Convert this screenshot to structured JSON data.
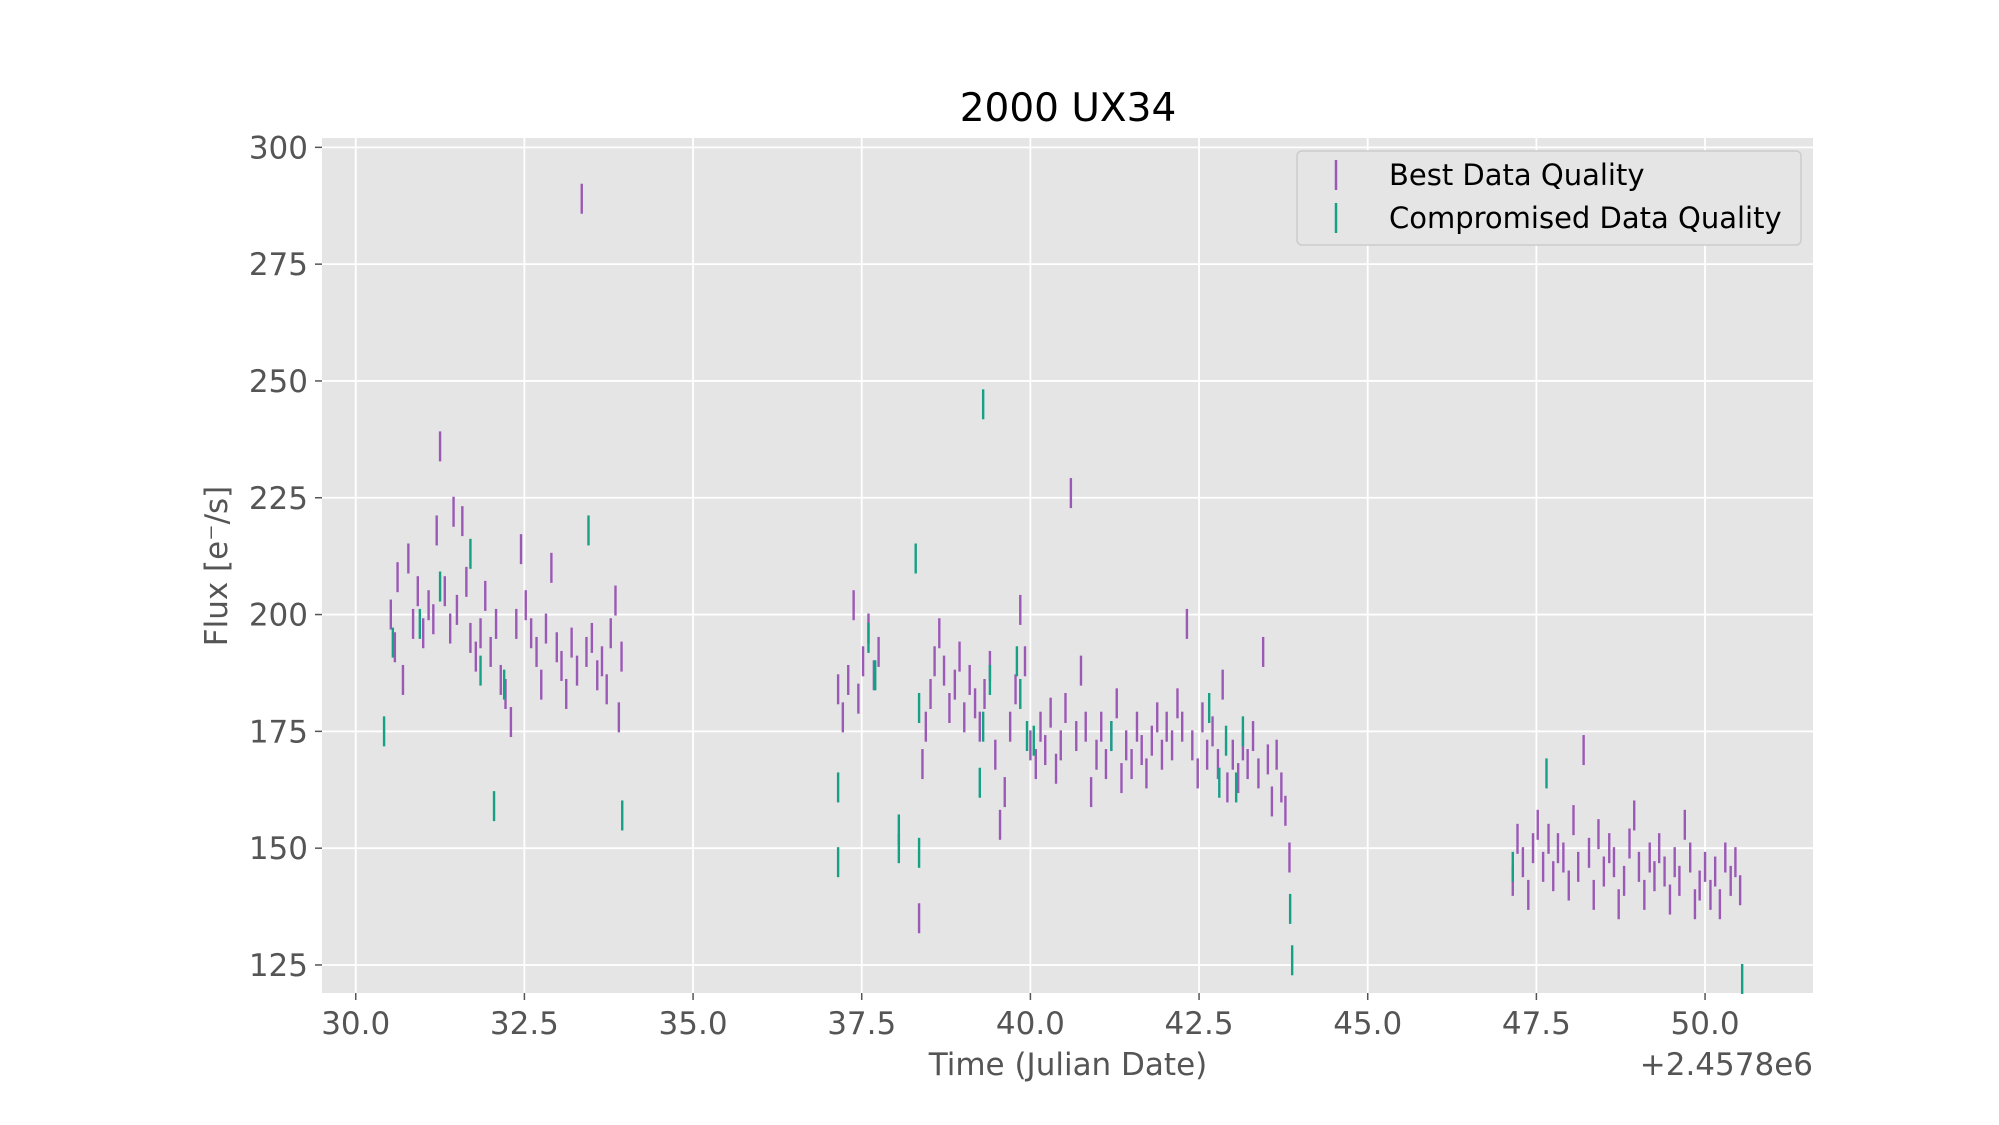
{
  "chart_data": {
    "type": "scatter",
    "title": "2000 UX34",
    "xlabel": "Time (Julian Date)",
    "ylabel": "Flux [e⁻/s]",
    "x_offset_label": "+2.4578e6",
    "xlim": [
      29.5,
      51.6
    ],
    "ylim": [
      119,
      302
    ],
    "xticks": [
      30.0,
      32.5,
      35.0,
      37.5,
      40.0,
      42.5,
      45.0,
      47.5,
      50.0
    ],
    "xtick_labels": [
      "30.0",
      "32.5",
      "35.0",
      "37.5",
      "40.0",
      "42.5",
      "45.0",
      "47.5",
      "50.0"
    ],
    "yticks": [
      125,
      150,
      175,
      200,
      225,
      250,
      275,
      300
    ],
    "ytick_labels": [
      "125",
      "150",
      "175",
      "200",
      "225",
      "250",
      "275",
      "300"
    ],
    "grid": true,
    "legend_position": "top-right",
    "background": "#e5e5e5",
    "series": [
      {
        "name": "Best Data Quality",
        "color": "#9b59b6",
        "points": [
          [
            30.52,
            200
          ],
          [
            30.58,
            193
          ],
          [
            30.62,
            208
          ],
          [
            30.7,
            186
          ],
          [
            30.78,
            212
          ],
          [
            30.85,
            198
          ],
          [
            30.92,
            205
          ],
          [
            31.0,
            196
          ],
          [
            31.08,
            202
          ],
          [
            31.15,
            199
          ],
          [
            31.2,
            218
          ],
          [
            31.25,
            236
          ],
          [
            31.32,
            205
          ],
          [
            31.4,
            197
          ],
          [
            31.45,
            222
          ],
          [
            31.5,
            201
          ],
          [
            31.58,
            220
          ],
          [
            31.64,
            207
          ],
          [
            31.7,
            195
          ],
          [
            31.78,
            191
          ],
          [
            31.85,
            196
          ],
          [
            31.92,
            204
          ],
          [
            32.0,
            192
          ],
          [
            32.08,
            198
          ],
          [
            32.15,
            186
          ],
          [
            32.22,
            183
          ],
          [
            32.3,
            177
          ],
          [
            32.38,
            198
          ],
          [
            32.45,
            214
          ],
          [
            32.52,
            202
          ],
          [
            32.6,
            196
          ],
          [
            32.68,
            192
          ],
          [
            32.75,
            185
          ],
          [
            32.82,
            197
          ],
          [
            32.9,
            210
          ],
          [
            32.98,
            193
          ],
          [
            33.05,
            189
          ],
          [
            33.12,
            183
          ],
          [
            33.2,
            194
          ],
          [
            33.28,
            188
          ],
          [
            33.35,
            289
          ],
          [
            33.42,
            192
          ],
          [
            33.5,
            195
          ],
          [
            33.58,
            187
          ],
          [
            33.65,
            190
          ],
          [
            33.72,
            184
          ],
          [
            33.78,
            196
          ],
          [
            33.85,
            203
          ],
          [
            33.9,
            178
          ],
          [
            33.94,
            191
          ],
          [
            37.15,
            184
          ],
          [
            37.22,
            178
          ],
          [
            37.3,
            186
          ],
          [
            37.38,
            202
          ],
          [
            37.45,
            182
          ],
          [
            37.52,
            190
          ],
          [
            37.6,
            197
          ],
          [
            37.68,
            187
          ],
          [
            37.75,
            192
          ],
          [
            38.35,
            135
          ],
          [
            38.4,
            168
          ],
          [
            38.45,
            176
          ],
          [
            38.52,
            183
          ],
          [
            38.58,
            190
          ],
          [
            38.65,
            196
          ],
          [
            38.72,
            188
          ],
          [
            38.8,
            180
          ],
          [
            38.88,
            185
          ],
          [
            38.95,
            191
          ],
          [
            39.02,
            178
          ],
          [
            39.1,
            186
          ],
          [
            39.18,
            181
          ],
          [
            39.25,
            176
          ],
          [
            39.32,
            183
          ],
          [
            39.4,
            189
          ],
          [
            39.48,
            170
          ],
          [
            39.55,
            155
          ],
          [
            39.62,
            162
          ],
          [
            39.7,
            176
          ],
          [
            39.78,
            184
          ],
          [
            39.85,
            201
          ],
          [
            39.92,
            190
          ],
          [
            40.0,
            172
          ],
          [
            40.08,
            168
          ],
          [
            40.15,
            176
          ],
          [
            40.22,
            171
          ],
          [
            40.3,
            179
          ],
          [
            40.38,
            167
          ],
          [
            40.45,
            172
          ],
          [
            40.52,
            180
          ],
          [
            40.6,
            226
          ],
          [
            40.68,
            174
          ],
          [
            40.75,
            188
          ],
          [
            40.82,
            176
          ],
          [
            40.9,
            162
          ],
          [
            40.98,
            170
          ],
          [
            41.05,
            176
          ],
          [
            41.12,
            168
          ],
          [
            41.2,
            174
          ],
          [
            41.28,
            181
          ],
          [
            41.35,
            165
          ],
          [
            41.42,
            172
          ],
          [
            41.5,
            168
          ],
          [
            41.58,
            176
          ],
          [
            41.65,
            171
          ],
          [
            41.72,
            166
          ],
          [
            41.8,
            173
          ],
          [
            41.88,
            178
          ],
          [
            41.95,
            170
          ],
          [
            42.02,
            176
          ],
          [
            42.1,
            172
          ],
          [
            42.18,
            181
          ],
          [
            42.25,
            176
          ],
          [
            42.32,
            198
          ],
          [
            42.4,
            172
          ],
          [
            42.48,
            166
          ],
          [
            42.55,
            178
          ],
          [
            42.62,
            170
          ],
          [
            42.7,
            175
          ],
          [
            42.78,
            168
          ],
          [
            42.85,
            185
          ],
          [
            42.92,
            163
          ],
          [
            43.0,
            170
          ],
          [
            43.08,
            165
          ],
          [
            43.15,
            172
          ],
          [
            43.22,
            168
          ],
          [
            43.3,
            174
          ],
          [
            43.38,
            166
          ],
          [
            43.45,
            192
          ],
          [
            43.52,
            169
          ],
          [
            43.58,
            160
          ],
          [
            43.65,
            170
          ],
          [
            43.72,
            163
          ],
          [
            43.78,
            158
          ],
          [
            43.84,
            148
          ],
          [
            47.15,
            143
          ],
          [
            47.22,
            152
          ],
          [
            47.3,
            147
          ],
          [
            47.38,
            140
          ],
          [
            47.45,
            150
          ],
          [
            47.52,
            155
          ],
          [
            47.6,
            146
          ],
          [
            47.68,
            152
          ],
          [
            47.75,
            144
          ],
          [
            47.82,
            150
          ],
          [
            47.9,
            148
          ],
          [
            47.98,
            142
          ],
          [
            48.05,
            156
          ],
          [
            48.12,
            146
          ],
          [
            48.2,
            171
          ],
          [
            48.28,
            149
          ],
          [
            48.35,
            140
          ],
          [
            48.42,
            153
          ],
          [
            48.5,
            145
          ],
          [
            48.58,
            150
          ],
          [
            48.65,
            147
          ],
          [
            48.72,
            138
          ],
          [
            48.8,
            143
          ],
          [
            48.88,
            151
          ],
          [
            48.95,
            157
          ],
          [
            49.02,
            146
          ],
          [
            49.1,
            140
          ],
          [
            49.18,
            148
          ],
          [
            49.25,
            144
          ],
          [
            49.32,
            150
          ],
          [
            49.4,
            145
          ],
          [
            49.48,
            139
          ],
          [
            49.55,
            147
          ],
          [
            49.62,
            143
          ],
          [
            49.7,
            155
          ],
          [
            49.78,
            148
          ],
          [
            49.85,
            138
          ],
          [
            49.92,
            142
          ],
          [
            50.0,
            146
          ],
          [
            50.08,
            140
          ],
          [
            50.15,
            145
          ],
          [
            50.22,
            138
          ],
          [
            50.3,
            148
          ],
          [
            50.38,
            143
          ],
          [
            50.45,
            147
          ],
          [
            50.52,
            141
          ]
        ]
      },
      {
        "name": "Compromised Data Quality",
        "color": "#16a085",
        "points": [
          [
            30.42,
            175
          ],
          [
            30.55,
            194
          ],
          [
            30.95,
            198
          ],
          [
            31.25,
            206
          ],
          [
            31.7,
            213
          ],
          [
            31.85,
            188
          ],
          [
            32.05,
            159
          ],
          [
            32.2,
            185
          ],
          [
            33.45,
            218
          ],
          [
            33.95,
            157
          ],
          [
            37.15,
            163
          ],
          [
            37.15,
            147
          ],
          [
            37.6,
            195
          ],
          [
            37.7,
            187
          ],
          [
            38.05,
            154
          ],
          [
            38.05,
            150
          ],
          [
            38.3,
            212
          ],
          [
            38.35,
            149
          ],
          [
            38.35,
            180
          ],
          [
            39.25,
            164
          ],
          [
            39.3,
            245
          ],
          [
            39.3,
            176
          ],
          [
            39.4,
            186
          ],
          [
            39.8,
            190
          ],
          [
            39.85,
            183
          ],
          [
            39.95,
            174
          ],
          [
            40.05,
            173
          ],
          [
            41.2,
            174
          ],
          [
            42.65,
            180
          ],
          [
            42.8,
            164
          ],
          [
            42.9,
            173
          ],
          [
            43.05,
            163
          ],
          [
            43.15,
            175
          ],
          [
            43.85,
            137
          ],
          [
            43.88,
            126
          ],
          [
            47.15,
            146
          ],
          [
            47.65,
            166
          ],
          [
            50.55,
            122
          ]
        ]
      }
    ]
  }
}
